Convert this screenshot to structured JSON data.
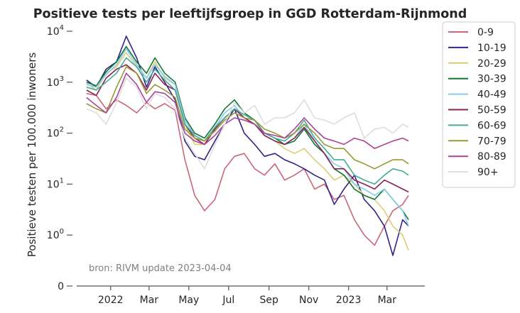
{
  "chart_data": {
    "type": "line",
    "title": "Positieve tests per leeftijfsgroep in GGD Rotterdam-Rijnmond",
    "ylabel": "Positieve testen per 100.000 inwoners",
    "xlabel": "",
    "yscale": "symlog",
    "ylim": [
      0,
      10000
    ],
    "yticks": [
      {
        "value": 0,
        "base": "0",
        "exp": ""
      },
      {
        "value": 1,
        "base": "10",
        "exp": "0"
      },
      {
        "value": 10,
        "base": "10",
        "exp": "1"
      },
      {
        "value": 100,
        "base": "10",
        "exp": "2"
      },
      {
        "value": 1000,
        "base": "10",
        "exp": "3"
      },
      {
        "value": 10000,
        "base": "10",
        "exp": "4"
      }
    ],
    "xlim": [
      "2021-11-10",
      "2023-04-28"
    ],
    "xticks": [
      {
        "date": "2022-01-01",
        "label": "2022"
      },
      {
        "date": "2022-03-01",
        "label": "Mar"
      },
      {
        "date": "2022-05-01",
        "label": "May"
      },
      {
        "date": "2022-07-01",
        "label": "Jul"
      },
      {
        "date": "2022-09-01",
        "label": "Sep"
      },
      {
        "date": "2022-11-01",
        "label": "Nov"
      },
      {
        "date": "2023-01-01",
        "label": "2023"
      },
      {
        "date": "2023-03-01",
        "label": "Mar"
      }
    ],
    "grid": false,
    "legend_position": "outside-right",
    "source_note": "bron: RIVM update 2023-04-04",
    "dates": [
      "2021-11-25",
      "2021-12-10",
      "2021-12-25",
      "2022-01-10",
      "2022-01-25",
      "2022-02-10",
      "2022-02-25",
      "2022-03-10",
      "2022-03-25",
      "2022-04-10",
      "2022-04-25",
      "2022-05-10",
      "2022-05-25",
      "2022-06-10",
      "2022-06-25",
      "2022-07-10",
      "2022-07-25",
      "2022-08-10",
      "2022-08-25",
      "2022-09-10",
      "2022-09-25",
      "2022-10-10",
      "2022-10-25",
      "2022-11-10",
      "2022-11-25",
      "2022-12-10",
      "2022-12-25",
      "2023-01-10",
      "2023-01-25",
      "2023-02-10",
      "2023-02-25",
      "2023-03-10",
      "2023-03-25",
      "2023-04-03"
    ],
    "series": [
      {
        "name": "0-9",
        "color": "#cc6677",
        "values": [
          600,
          550,
          300,
          450,
          350,
          250,
          400,
          300,
          380,
          280,
          30,
          6,
          3,
          5,
          20,
          35,
          40,
          20,
          15,
          25,
          12,
          15,
          20,
          8,
          10,
          5,
          6,
          2,
          1,
          0.8,
          1.5,
          3,
          4,
          6
        ]
      },
      {
        "name": "10-19",
        "color": "#332288",
        "values": [
          1100,
          800,
          1800,
          2500,
          8000,
          3000,
          800,
          2000,
          1000,
          450,
          70,
          35,
          30,
          70,
          150,
          300,
          100,
          60,
          35,
          40,
          30,
          25,
          20,
          15,
          12,
          4,
          8,
          15,
          5,
          3,
          1.5,
          0.6,
          2,
          1.5
        ]
      },
      {
        "name": "20-29",
        "color": "#ddcc77",
        "values": [
          950,
          700,
          1500,
          2000,
          3800,
          2000,
          1200,
          2500,
          1200,
          900,
          150,
          60,
          60,
          120,
          200,
          300,
          200,
          180,
          90,
          70,
          50,
          40,
          50,
          30,
          20,
          12,
          15,
          10,
          6,
          5,
          3,
          1.5,
          1,
          0.7
        ]
      },
      {
        "name": "30-39",
        "color": "#117733",
        "values": [
          1000,
          850,
          1600,
          2500,
          5000,
          2500,
          1500,
          3000,
          1500,
          1000,
          200,
          100,
          80,
          150,
          300,
          450,
          250,
          180,
          100,
          80,
          60,
          70,
          120,
          60,
          40,
          20,
          15,
          8,
          6,
          5,
          8,
          5,
          3,
          2
        ]
      },
      {
        "name": "40-49",
        "color": "#88ccee",
        "values": [
          900,
          800,
          1400,
          2200,
          4500,
          2200,
          1200,
          2200,
          1300,
          900,
          180,
          90,
          70,
          130,
          250,
          350,
          200,
          150,
          90,
          70,
          60,
          80,
          150,
          70,
          40,
          25,
          20,
          10,
          8,
          6,
          8,
          5,
          3,
          1.5
        ]
      },
      {
        "name": "50-59",
        "color": "#882255",
        "values": [
          700,
          550,
          1200,
          1800,
          2200,
          1500,
          700,
          1500,
          900,
          700,
          150,
          80,
          60,
          120,
          200,
          300,
          200,
          150,
          90,
          70,
          60,
          80,
          130,
          70,
          40,
          20,
          20,
          12,
          10,
          8,
          12,
          10,
          8,
          7
        ]
      },
      {
        "name": "60-69",
        "color": "#44aa99",
        "values": [
          800,
          700,
          1000,
          1500,
          3000,
          2000,
          1000,
          1800,
          1100,
          700,
          150,
          90,
          70,
          130,
          200,
          300,
          230,
          180,
          100,
          80,
          70,
          100,
          180,
          80,
          50,
          30,
          30,
          15,
          12,
          10,
          15,
          20,
          18,
          15
        ]
      },
      {
        "name": "70-79",
        "color": "#999933",
        "values": [
          380,
          300,
          250,
          800,
          2000,
          1500,
          600,
          900,
          700,
          500,
          120,
          80,
          70,
          110,
          180,
          250,
          200,
          180,
          120,
          100,
          80,
          100,
          150,
          100,
          60,
          50,
          50,
          30,
          25,
          20,
          25,
          30,
          30,
          25
        ]
      },
      {
        "name": "80-89",
        "color": "#aa4499",
        "values": [
          500,
          350,
          250,
          500,
          1500,
          900,
          400,
          650,
          600,
          400,
          100,
          70,
          60,
          90,
          150,
          200,
          180,
          150,
          100,
          90,
          80,
          120,
          200,
          120,
          80,
          70,
          60,
          80,
          70,
          50,
          60,
          70,
          80,
          70
        ]
      },
      {
        "name": "90+",
        "color": "#dddddd",
        "values": [
          300,
          250,
          150,
          400,
          1200,
          800,
          300,
          600,
          500,
          300,
          80,
          40,
          20,
          60,
          150,
          400,
          250,
          350,
          150,
          200,
          200,
          250,
          450,
          200,
          180,
          150,
          200,
          250,
          80,
          120,
          130,
          100,
          150,
          130
        ]
      }
    ]
  }
}
